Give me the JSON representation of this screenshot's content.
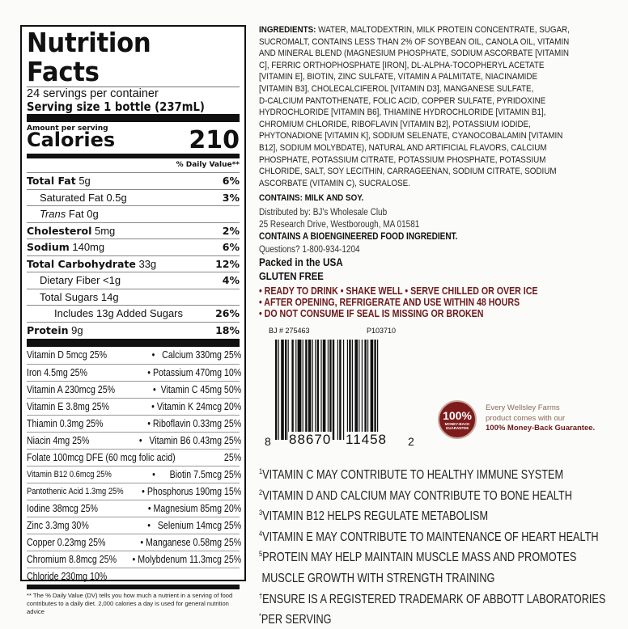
{
  "nutrition": {
    "title": "Nutrition Facts",
    "servings": "24 servings per container",
    "serving_size": "Serving size 1 bottle (237mL)",
    "amount_per_serving": "Amount per serving",
    "calories_label": "Calories",
    "calories": "210",
    "dv_header": "% Daily Value**",
    "rows": [
      {
        "bold": "Total Fat",
        "amt": " 5g",
        "dv": "6%"
      },
      {
        "bold": "",
        "amt": "Saturated Fat 0.5g",
        "dv": "3%"
      },
      {
        "bold": "",
        "italic": "Trans",
        "amt": " Fat 0g",
        "dv": ""
      },
      {
        "bold": "Cholesterol",
        "amt": " 5mg",
        "dv": "2%"
      },
      {
        "bold": "Sodium",
        "amt": " 140mg",
        "dv": "6%"
      },
      {
        "bold": "Total Carbohydrate",
        "amt": " 33g",
        "dv": "12%"
      },
      {
        "bold": "",
        "amt": "Dietary Fiber <1g",
        "dv": "4%"
      },
      {
        "bold": "",
        "amt": "Total Sugars 14g",
        "dv": ""
      },
      {
        "bold": "",
        "amt": "Includes 13g Added Sugars",
        "dv": "26%"
      },
      {
        "bold": "Protein",
        "amt": " 9g",
        "dv": "18%"
      }
    ],
    "vitamins": [
      [
        "Vitamin D 5mcg 25%",
        "•   Calcium 330mg 25%"
      ],
      [
        "Iron 4.5mg 25%",
        "• Potassium 470mg 10%"
      ],
      [
        "Vitamin A 230mcg 25%",
        "•  Vitamin C 45mg 50%"
      ],
      [
        "Vitamin E 3.8mg 25%",
        "• Vitamin K 24mcg 20%"
      ],
      [
        "Thiamin 0.3mg 25%",
        "• Riboflavin 0.33mg 25%"
      ],
      [
        "Niacin 4mg 25%",
        "•   Vitamin B6 0.43mg 25%"
      ],
      [
        "Folate 100mcg DFE (60 mcg folic acid)",
        "25%"
      ],
      [
        "Vitamin B12 0.6mcg 25%",
        "•      Biotin 7.5mcg 25%"
      ],
      [
        "Pantothenic Acid 1.3mg 25%",
        "• Phosphorus 190mg 15%"
      ],
      [
        "Iodine 38mcg 25%",
        "• Magnesium 85mg 20%"
      ],
      [
        "Zinc 3.3mg 30%",
        "•   Selenium 14mcg 25%"
      ],
      [
        "Copper 0.23mg 25%",
        "• Manganese 0.58mg 25%"
      ],
      [
        "Chromium 8.8mcg 25%",
        "• Molybdenum 11.3mcg 25%"
      ],
      [
        "Chloride 230mg 10%",
        ""
      ]
    ],
    "footnote": "** The % Daily Value (DV) tells you how much a nutrient in a serving of food contributes to a daily diet. 2,000 calories a day is used for general nutrition advice"
  },
  "ingredients": {
    "label": "INGREDIENTS:",
    "lines": [
      " WATER, MALTODEXTRIN, MILK PROTEIN CONCENTRATE, SUGAR,",
      "SUCROMALT, CONTAINS LESS THAN 2% OF SOYBEAN OIL, CANOLA OIL, VITAMIN",
      "AND MINERAL BLEND (MAGNESIUM PHOSPHATE, SODIUM ASCORBATE [VITAMIN",
      "C], FERRIC ORTHOPHOSPHATE [IRON], DL-ALPHA-TOCOPHERYL ACETATE",
      "[VITAMIN E], BIOTIN, ZINC SULFATE, VITAMIN A PALMITATE, NIACINAMIDE",
      "[VITAMIN B3], CHOLECALCIFEROL [VITAMIN D3], MANGANESE SULFATE,",
      "D-CALCIUM PANTOTHENATE, FOLIC ACID, COPPER SULFATE, PYRIDOXINE",
      "HYDROCHLORIDE [VITAMIN B6], THIAMINE HYDROCHLORIDE [VITAMIN B1],",
      "CHROMIUM CHLORIDE, RIBOFLAVIN [VITAMIN B2], POTASSIUM IODIDE,",
      "PHYTONADIONE [VITAMIN K], SODIUM SELENATE, CYANOCOBALAMIN [VITAMIN",
      "B12], SODIUM MOLYBDATE), NATURAL AND ARTIFICIAL FLAVORS, CALCIUM",
      "PHOSPHATE, POTASSIUM CITRATE, POTASSIUM PHOSPHATE, POTASSIUM",
      "CHLORIDE, SALT, SOY LECITHIN, CARRAGEENAN, SODIUM CITRATE, SODIUM",
      "ASCORBATE (VITAMIN C), SUCRALOSE."
    ],
    "contains": "CONTAINS: MILK AND SOY."
  },
  "distributor": {
    "line1": "Distributed by: BJ's Wholesale Club",
    "line2": "25 Research Drive, Westborough, MA 01581"
  },
  "bioengineered": "CONTAINS A BIOENGINEERED FOOD INGREDIENT.",
  "questions": "Questions? 1-800-934-1204",
  "packed": "Packed in the USA",
  "gluten": "GLUTEN FREE",
  "directions": [
    "• READY TO DRINK • SHAKE WELL • SERVE CHILLED OR OVER ICE",
    "• AFTER OPENING, REFRIGERATE AND USE WITHIN 48 HOURS",
    "• DO NOT CONSUME IF SEAL IS MISSING OR BROKEN"
  ],
  "direction_color": "#6b1a1a",
  "barcode": {
    "bj": "BJ # 275463",
    "code": "P103710",
    "first": "8",
    "left": "88670",
    "right": "11458",
    "last": "2"
  },
  "guarantee": {
    "badge_big": "100%",
    "badge_small": "MONEY-BACK GUARANTEE",
    "line1": "Every Wellsley Farms",
    "line2": "product comes with our",
    "line3": "100% Money-Back Guarantee.",
    "color": "#7e1b1b"
  },
  "claims": [
    {
      "mark": "1",
      "text": "VITAMIN C MAY CONTRIBUTE TO HEALTHY IMMUNE SYSTEM"
    },
    {
      "mark": "2",
      "text": "VITAMIN D AND CALCIUM MAY CONTRIBUTE TO BONE HEALTH"
    },
    {
      "mark": "3",
      "text": "VITAMIN B12 HELPS REGULATE METABOLISM"
    },
    {
      "mark": "4",
      "text": "VITAMIN E MAY CONTRIBUTE TO MAINTENANCE OF HEART HEALTH"
    },
    {
      "mark": "5",
      "text": "PROTEIN MAY HELP MAINTAIN MUSCLE MASS AND PROMOTES"
    },
    {
      "mark": "",
      "text": " MUSCLE GROWTH WITH STRENGTH TRAINING"
    },
    {
      "mark": "†",
      "text": "ENSURE IS A REGISTERED TRADEMARK OF ABBOTT LABORATORIES"
    },
    {
      "mark": "*",
      "text": "PER SERVING"
    }
  ]
}
